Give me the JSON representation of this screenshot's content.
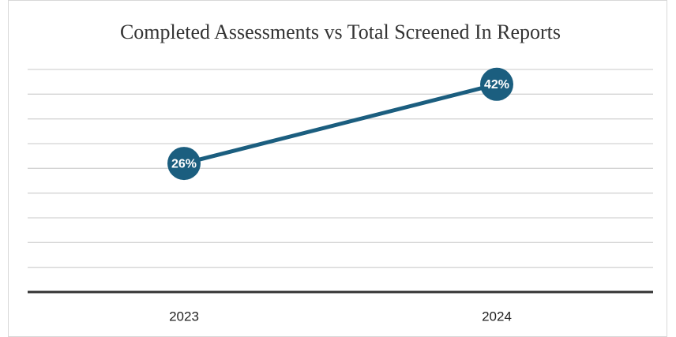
{
  "chart_data": {
    "type": "line",
    "title": "Completed Assessments vs Total Screened In Reports",
    "categories": [
      "2023",
      "2024"
    ],
    "values": [
      26,
      42
    ],
    "value_labels": [
      "26%",
      "42%"
    ],
    "color": "#1b5e7f",
    "ylim": [
      0,
      45
    ],
    "yticks": [
      0,
      5,
      10,
      15,
      20,
      25,
      30,
      35,
      40,
      45
    ],
    "grid": true
  }
}
